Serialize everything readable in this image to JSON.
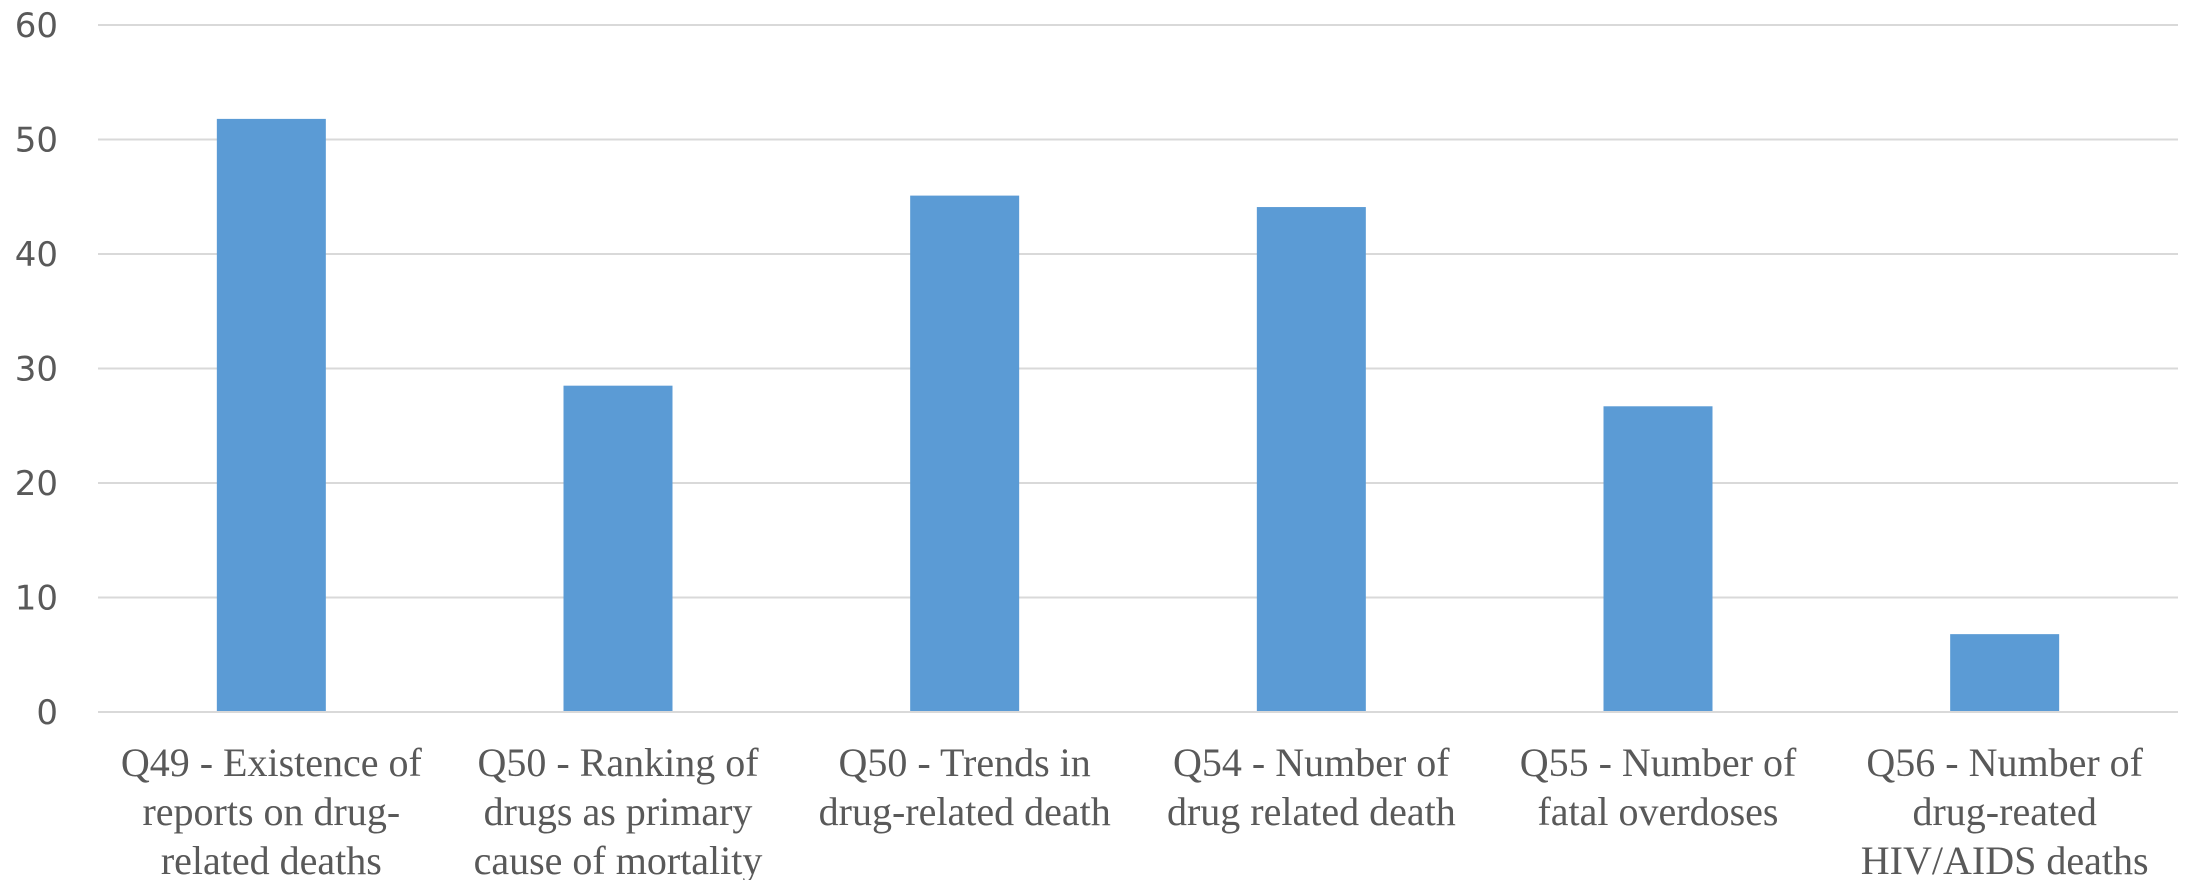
{
  "chart_data": {
    "type": "bar",
    "categories": [
      [
        "Q49 - Existence of",
        "reports on drug-",
        "related deaths"
      ],
      [
        "Q50 - Ranking of",
        "drugs as primary",
        "cause of mortality"
      ],
      [
        "Q50 - Trends in",
        "drug-related death"
      ],
      [
        "Q54 - Number of",
        "drug related death"
      ],
      [
        "Q55 - Number of",
        "fatal overdoses"
      ],
      [
        "Q56 - Number of",
        "drug-reated",
        "HIV/AIDS deaths"
      ]
    ],
    "values": [
      51.8,
      28.5,
      45.1,
      44.1,
      26.7,
      6.8
    ],
    "yticks": [
      "0",
      "10",
      "20",
      "30",
      "40",
      "50",
      "60"
    ],
    "ylim": [
      0,
      60
    ],
    "grid": true,
    "bar_color": "#5b9bd5"
  }
}
